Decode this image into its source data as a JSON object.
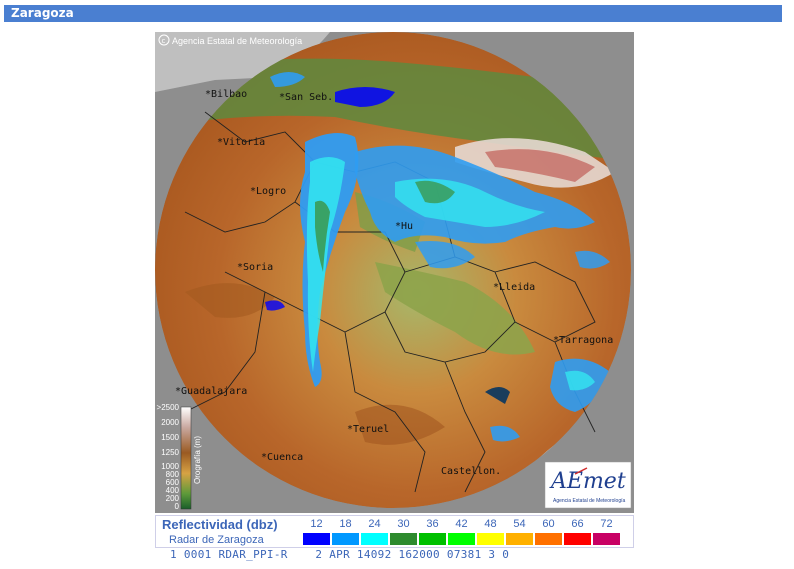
{
  "window": {
    "title": "Zaragoza"
  },
  "map": {
    "copyright": "Agencia Estatal de Meteorología",
    "cities": [
      {
        "name": "Bilbao"
      },
      {
        "name": "San Seb."
      },
      {
        "name": "Vitoria"
      },
      {
        "name": "Logro"
      },
      {
        "name": "Soria"
      },
      {
        "name": "Hu"
      },
      {
        "name": "Lleida"
      },
      {
        "name": "Tarragona"
      },
      {
        "name": "Guadalajara"
      },
      {
        "name": "Teruel"
      },
      {
        "name": "Cuenca"
      },
      {
        "name": "Castellon."
      }
    ],
    "orography_legend": {
      "title": "Orografía (m)",
      "ticks": [
        ">2500",
        "2000",
        "1500",
        "1250",
        "1000",
        "800",
        "600",
        "400",
        "200",
        "0"
      ]
    },
    "logo": {
      "mark": "AEmet",
      "caption": "Agencia Estatal de Meteorología"
    }
  },
  "legend": {
    "title": "Reflectividad (dbz)",
    "subtitle": "Radar de Zaragoza",
    "scale": [
      {
        "label": "12",
        "color": "#0000ff"
      },
      {
        "label": "18",
        "color": "#0098ff"
      },
      {
        "label": "24",
        "color": "#00ffff"
      },
      {
        "label": "30",
        "color": "#2e8b2e"
      },
      {
        "label": "36",
        "color": "#00c000"
      },
      {
        "label": "42",
        "color": "#00ff00"
      },
      {
        "label": "48",
        "color": "#ffff00"
      },
      {
        "label": "54",
        "color": "#ffb000"
      },
      {
        "label": "60",
        "color": "#ff7000"
      },
      {
        "label": "66",
        "color": "#ff0000"
      },
      {
        "label": "72",
        "color": "#c80064"
      }
    ]
  },
  "status": {
    "line": "1 0001 RDAR_PPI-R    2 APR 14092 162000 07381 3 0"
  }
}
